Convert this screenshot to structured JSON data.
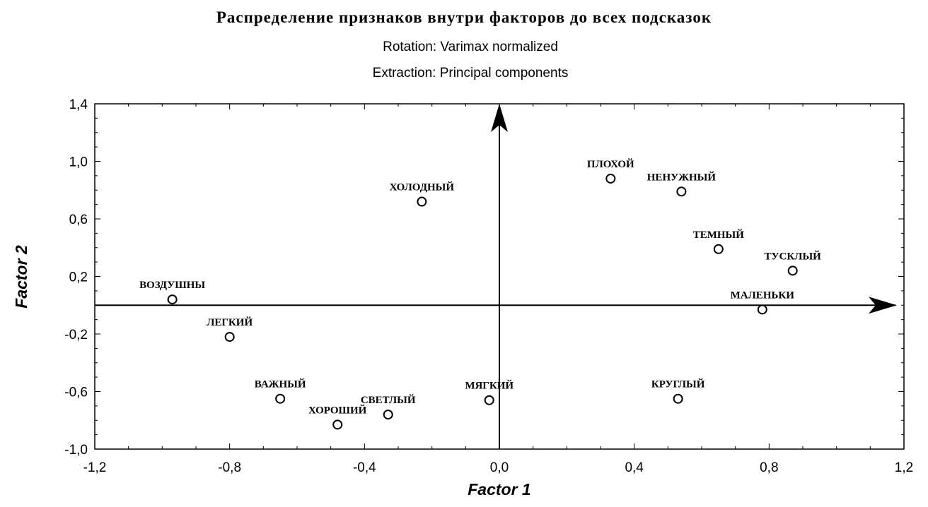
{
  "chart_data": {
    "type": "scatter",
    "title": "Распределение признаков внутри факторов до всех подсказок",
    "subtitles": [
      "Rotation: Varimax normalized",
      "Extraction: Principal components"
    ],
    "xlabel": "Factor 1",
    "ylabel": "Factor 2",
    "xlim": [
      -1.2,
      1.2
    ],
    "ylim": [
      -1.0,
      1.4
    ],
    "x_ticks": [
      "-1,2",
      "-0,8",
      "-0,4",
      "0,0",
      "0,4",
      "0,8",
      "1,2"
    ],
    "y_ticks": [
      "1,4",
      "1,0",
      "0,6",
      "0,2",
      "-0,2",
      "-0,6",
      "-1,0"
    ],
    "grid": false,
    "points": [
      {
        "label": "ВОЗДУШНЫ",
        "x": -0.97,
        "y": 0.04
      },
      {
        "label": "ЛЕГКИЙ",
        "x": -0.8,
        "y": -0.22
      },
      {
        "label": "ВАЖНЫЙ",
        "x": -0.65,
        "y": -0.65
      },
      {
        "label": "ХОРОШИЙ",
        "x": -0.48,
        "y": -0.83
      },
      {
        "label": "СВЕТЛЫЙ",
        "x": -0.33,
        "y": -0.76
      },
      {
        "label": "ХОЛОДНЫЙ",
        "x": -0.23,
        "y": 0.72
      },
      {
        "label": "МЯГКИЙ",
        "x": -0.03,
        "y": -0.66
      },
      {
        "label": "ПЛОХОЙ",
        "x": 0.33,
        "y": 0.88
      },
      {
        "label": "НЕНУЖНЫЙ",
        "x": 0.54,
        "y": 0.79
      },
      {
        "label": "ТЕМНЫЙ",
        "x": 0.65,
        "y": 0.39
      },
      {
        "label": "ТУСКЛЫЙ",
        "x": 0.87,
        "y": 0.24
      },
      {
        "label": "МАЛЕНЬКИ",
        "x": 0.78,
        "y": -0.03
      },
      {
        "label": "КРУГЛЫЙ",
        "x": 0.53,
        "y": -0.65
      }
    ]
  }
}
